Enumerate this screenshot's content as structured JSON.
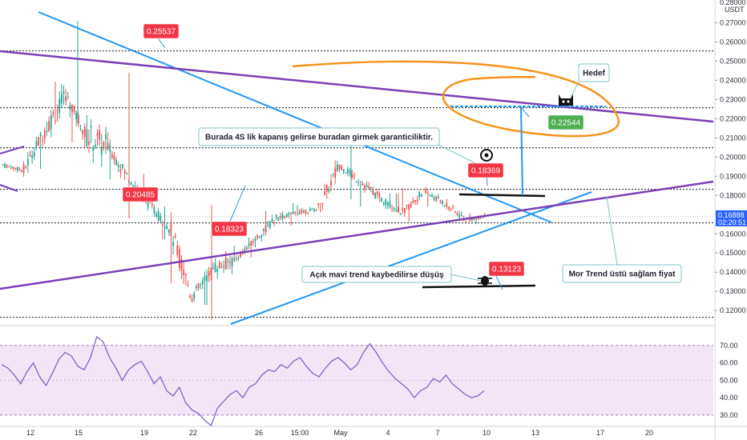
{
  "chart_data": {
    "type": "candlestick",
    "price_axis": {
      "currency": "USDT",
      "top_label": "0.28000",
      "ticks": [
        "0.27000",
        "0.26000",
        "0.25000",
        "0.24000",
        "0.23000",
        "0.22000",
        "0.21000",
        "0.20000",
        "0.19000",
        "0.18000",
        "0.17000",
        "0.16000",
        "0.15000",
        "0.14000",
        "0.13000",
        "0.12000"
      ],
      "ylim": [
        0.113,
        0.281
      ],
      "current_price": "0.16888",
      "countdown": "02:20:51"
    },
    "time_axis": [
      "12",
      "15",
      "19",
      "22",
      "26",
      "15:00",
      "May",
      "4",
      "7",
      "10",
      "13",
      "17",
      "20"
    ],
    "dotted_levels": [
      0.2553,
      0.2257,
      0.2048,
      0.1832,
      0.1657,
      0.1165
    ],
    "candles_ohlc_sample": [
      [
        0.196,
        0.199,
        0.189,
        0.193
      ],
      [
        0.193,
        0.221,
        0.19,
        0.214
      ],
      [
        0.214,
        0.255,
        0.211,
        0.232
      ],
      [
        0.232,
        0.236,
        0.205,
        0.211
      ],
      [
        0.211,
        0.246,
        0.18,
        0.205
      ],
      [
        0.205,
        0.213,
        0.186,
        0.189
      ],
      [
        0.189,
        0.193,
        0.171,
        0.175
      ],
      [
        0.175,
        0.179,
        0.157,
        0.161
      ],
      [
        0.161,
        0.163,
        0.116,
        0.127
      ],
      [
        0.127,
        0.148,
        0.123,
        0.142
      ],
      [
        0.142,
        0.151,
        0.12,
        0.146
      ],
      [
        0.146,
        0.158,
        0.144,
        0.157
      ],
      [
        0.157,
        0.172,
        0.153,
        0.168
      ],
      [
        0.168,
        0.176,
        0.163,
        0.171
      ],
      [
        0.171,
        0.176,
        0.166,
        0.173
      ],
      [
        0.173,
        0.203,
        0.171,
        0.196
      ],
      [
        0.196,
        0.201,
        0.183,
        0.187
      ],
      [
        0.187,
        0.19,
        0.17,
        0.178
      ],
      [
        0.178,
        0.181,
        0.163,
        0.171
      ],
      [
        0.171,
        0.185,
        0.166,
        0.182
      ],
      [
        0.182,
        0.185,
        0.171,
        0.176
      ],
      [
        0.176,
        0.179,
        0.163,
        0.167
      ],
      [
        0.167,
        0.171,
        0.165,
        0.169
      ]
    ],
    "price_tags": [
      {
        "label": "0.25537",
        "color": "#f23645"
      },
      {
        "label": "0.20485",
        "color": "#f23645"
      },
      {
        "label": "0.18323",
        "color": "#f23645"
      },
      {
        "label": "0.18369",
        "color": "#f23645"
      },
      {
        "label": "0.13123",
        "color": "#f23645"
      },
      {
        "label": "0.22544",
        "color": "#4caf50"
      }
    ],
    "notes": [
      "Burada 4S lik kapanış gelirse buradan girmek garanticiliktir.",
      "Hedef",
      "Açık mavi trend kaybedilirse düşüş",
      "Mor Trend üstü sağlam fiyat"
    ],
    "rsi": {
      "ticks": [
        "70.00",
        "60.00",
        "50.00",
        "40.00",
        "30.00"
      ],
      "ylim": [
        24,
        80
      ],
      "band": [
        30,
        70
      ],
      "values": [
        59,
        57,
        53,
        48,
        55,
        60,
        52,
        47,
        54,
        62,
        66,
        64,
        58,
        56,
        63,
        75,
        72,
        63,
        57,
        50,
        56,
        59,
        61,
        55,
        48,
        52,
        44,
        41,
        46,
        37,
        33,
        31,
        27,
        24,
        34,
        38,
        42,
        44,
        40,
        46,
        48,
        53,
        56,
        55,
        59,
        57,
        61,
        63,
        58,
        54,
        52,
        57,
        61,
        63,
        60,
        56,
        59,
        66,
        71,
        66,
        60,
        55,
        51,
        48,
        45,
        40,
        44,
        46,
        51,
        49,
        53,
        48,
        45,
        42,
        40,
        41,
        44
      ]
    },
    "colors": {
      "up": "#26a69a",
      "down": "#ef5350",
      "trend_blue": "#2196f3",
      "trend_purple": "#7b3fb5",
      "ellipse": "#f7931a",
      "rsi_line": "#7e57c2",
      "rsi_band": "#f3e5f5",
      "current_price": "#2962ff"
    }
  }
}
